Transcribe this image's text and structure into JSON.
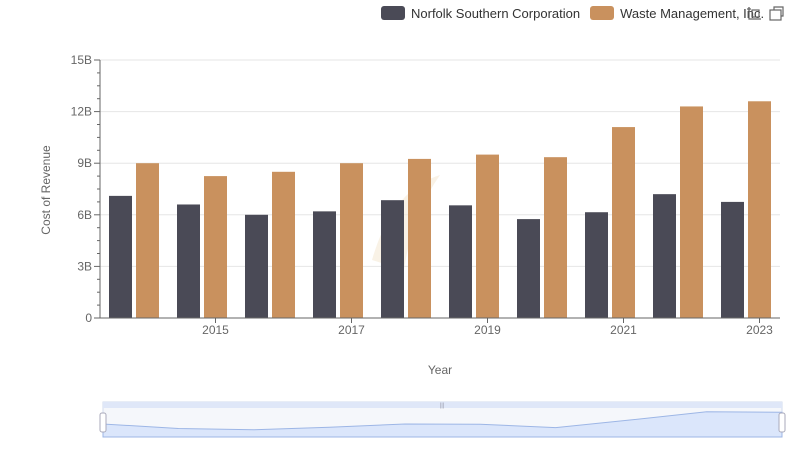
{
  "chart_data": {
    "type": "bar",
    "x": [
      2014,
      2015,
      2016,
      2017,
      2018,
      2019,
      2020,
      2021,
      2022,
      2023
    ],
    "x_tick_labels": [
      "2015",
      "2017",
      "2019",
      "2021",
      "2023"
    ],
    "series": [
      {
        "name": "Norfolk Southern Corporation",
        "color": "#4a4a56",
        "values": [
          7.1,
          6.6,
          6.0,
          6.2,
          6.85,
          6.55,
          5.75,
          6.15,
          7.2,
          6.75
        ]
      },
      {
        "name": "Waste Management, Inc.",
        "color": "#c9915e",
        "values": [
          9.0,
          8.25,
          8.5,
          9.0,
          9.25,
          9.5,
          9.35,
          11.1,
          12.3,
          12.6
        ]
      }
    ],
    "ylabel": "Cost of Revenue",
    "xlabel": "Year",
    "ylim": [
      0,
      15
    ],
    "y_ticks": [
      0,
      3,
      6,
      9,
      12,
      15
    ],
    "y_tick_labels": [
      "0",
      "3B",
      "6B",
      "9B",
      "12B",
      "15B"
    ],
    "grid": true,
    "legend_position": "top-right"
  },
  "toolbox": {
    "icons": [
      "zoom-icon",
      "zoom-reset-icon"
    ]
  },
  "data_zoom": {
    "range_percent": [
      0,
      100
    ]
  }
}
